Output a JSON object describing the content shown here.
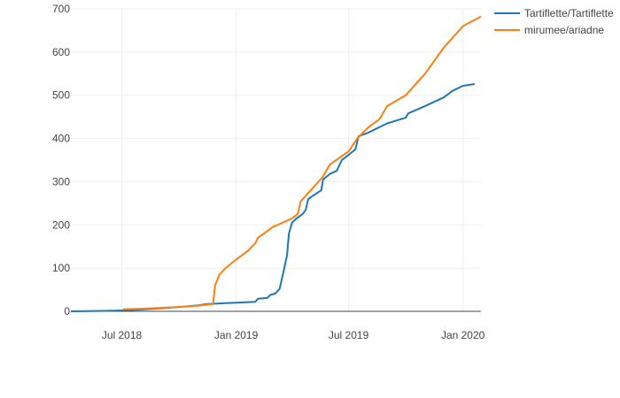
{
  "chart_data": {
    "type": "line",
    "title": "",
    "xlabel": "",
    "ylabel": "",
    "x_axis": {
      "kind": "date",
      "range": [
        "2018-04-10",
        "2020-01-30"
      ],
      "ticks": [
        {
          "date": "2018-07-01",
          "label": "Jul 2018"
        },
        {
          "date": "2019-01-01",
          "label": "Jan 2019"
        },
        {
          "date": "2019-07-01",
          "label": "Jul 2019"
        },
        {
          "date": "2020-01-01",
          "label": "Jan 2020"
        }
      ]
    },
    "y_axis": {
      "range": [
        0,
        700
      ],
      "ticks": [
        {
          "value": 0,
          "label": "0"
        },
        {
          "value": 100,
          "label": "100"
        },
        {
          "value": 200,
          "label": "200"
        },
        {
          "value": 300,
          "label": "300"
        },
        {
          "value": 400,
          "label": "400"
        },
        {
          "value": 500,
          "label": "500"
        },
        {
          "value": 600,
          "label": "600"
        },
        {
          "value": 700,
          "label": "700"
        }
      ]
    },
    "grid": true,
    "legend": "top-right",
    "series": [
      {
        "name": "Tartiflette/Tartiflette",
        "color": "#1f77b4",
        "points": [
          [
            "2018-04-10",
            0
          ],
          [
            "2018-06-01",
            1
          ],
          [
            "2018-07-01",
            2
          ],
          [
            "2018-08-01",
            4
          ],
          [
            "2018-09-01",
            7
          ],
          [
            "2018-10-01",
            10
          ],
          [
            "2018-11-01",
            14
          ],
          [
            "2018-11-15",
            17
          ],
          [
            "2018-12-01",
            18
          ],
          [
            "2019-01-01",
            20
          ],
          [
            "2019-02-01",
            22
          ],
          [
            "2019-02-05",
            29
          ],
          [
            "2019-02-20",
            31
          ],
          [
            "2019-02-25",
            38
          ],
          [
            "2019-03-05",
            41
          ],
          [
            "2019-03-12",
            52
          ],
          [
            "2019-03-18",
            90
          ],
          [
            "2019-03-24",
            130
          ],
          [
            "2019-03-27",
            180
          ],
          [
            "2019-04-01",
            205
          ],
          [
            "2019-04-08",
            215
          ],
          [
            "2019-04-18",
            225
          ],
          [
            "2019-04-23",
            235
          ],
          [
            "2019-04-27",
            260
          ],
          [
            "2019-05-05",
            268
          ],
          [
            "2019-05-18",
            280
          ],
          [
            "2019-05-21",
            305
          ],
          [
            "2019-06-01",
            318
          ],
          [
            "2019-06-12",
            325
          ],
          [
            "2019-06-20",
            350
          ],
          [
            "2019-07-01",
            362
          ],
          [
            "2019-07-12",
            375
          ],
          [
            "2019-07-17",
            405
          ],
          [
            "2019-08-01",
            413
          ],
          [
            "2019-09-01",
            435
          ],
          [
            "2019-10-01",
            448
          ],
          [
            "2019-10-05",
            458
          ],
          [
            "2019-11-01",
            475
          ],
          [
            "2019-12-01",
            495
          ],
          [
            "2019-12-15",
            510
          ],
          [
            "2020-01-01",
            522
          ],
          [
            "2020-01-20",
            526
          ]
        ]
      },
      {
        "name": "mirumee/ariadne",
        "color": "#ff7f0e",
        "points": [
          [
            "2018-07-03",
            5
          ],
          [
            "2018-08-01",
            6
          ],
          [
            "2018-09-01",
            8
          ],
          [
            "2018-10-01",
            10
          ],
          [
            "2018-11-01",
            13
          ],
          [
            "2018-11-25",
            17
          ],
          [
            "2018-11-28",
            60
          ],
          [
            "2018-12-05",
            85
          ],
          [
            "2018-12-15",
            100
          ],
          [
            "2019-01-01",
            120
          ],
          [
            "2019-01-20",
            140
          ],
          [
            "2019-02-01",
            158
          ],
          [
            "2019-02-05",
            170
          ],
          [
            "2019-03-01",
            195
          ],
          [
            "2019-04-01",
            215
          ],
          [
            "2019-04-10",
            225
          ],
          [
            "2019-04-15",
            255
          ],
          [
            "2019-05-01",
            280
          ],
          [
            "2019-05-20",
            310
          ],
          [
            "2019-06-01",
            340
          ],
          [
            "2019-07-01",
            370
          ],
          [
            "2019-07-15",
            400
          ],
          [
            "2019-08-01",
            425
          ],
          [
            "2019-08-20",
            445
          ],
          [
            "2019-09-01",
            475
          ],
          [
            "2019-10-01",
            500
          ],
          [
            "2019-11-01",
            550
          ],
          [
            "2019-12-01",
            610
          ],
          [
            "2020-01-01",
            660
          ],
          [
            "2020-01-30",
            682
          ]
        ]
      }
    ]
  }
}
